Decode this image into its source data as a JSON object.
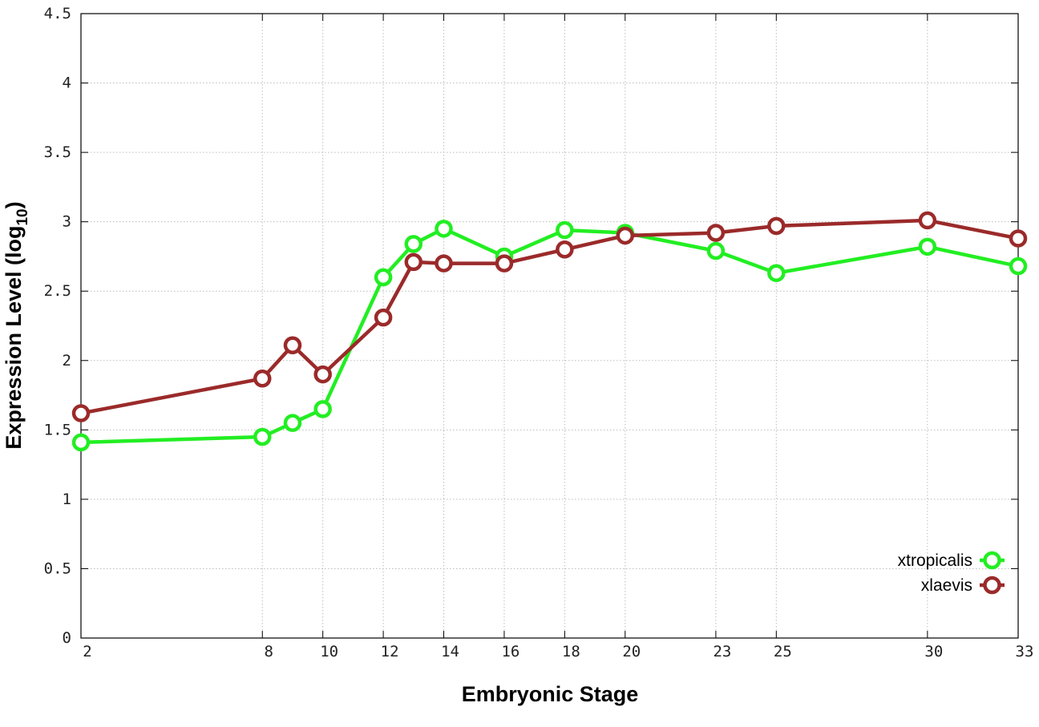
{
  "chart_data": {
    "type": "line",
    "title": "",
    "xlabel": "Embryonic Stage",
    "ylabel": "Expression Level (log",
    "ylabel_subscript": "10",
    "ylabel_close": ")",
    "xlim": [
      2,
      33
    ],
    "ylim": [
      0,
      4.5
    ],
    "x_ticks": [
      2,
      8,
      10,
      12,
      14,
      16,
      18,
      20,
      23,
      25,
      30,
      33
    ],
    "x_tick_labels": [
      "2",
      "8",
      "10",
      "12",
      "14",
      "16",
      "18",
      "20",
      "23",
      "25",
      "30",
      "33"
    ],
    "y_ticks": [
      0,
      0.5,
      1,
      1.5,
      2,
      2.5,
      3,
      3.5,
      4,
      4.5
    ],
    "y_tick_labels": [
      "0",
      "0.5",
      "1",
      "1.5",
      "2",
      "2.5",
      "3",
      "3.5",
      "4",
      "4.5"
    ],
    "grid": true,
    "legend_position": "bottom-right",
    "x": [
      2,
      8,
      9,
      10,
      12,
      13,
      14,
      16,
      18,
      20,
      23,
      25,
      30,
      33
    ],
    "series": [
      {
        "name": "xtropicalis",
        "color": "#22ee22",
        "values": [
          1.41,
          1.45,
          1.55,
          1.65,
          2.6,
          2.84,
          2.95,
          2.75,
          2.94,
          2.92,
          2.79,
          2.63,
          2.82,
          2.68
        ]
      },
      {
        "name": "xlaevis",
        "color": "#9b2a2a",
        "values": [
          1.62,
          1.87,
          2.11,
          1.9,
          2.31,
          2.71,
          2.7,
          2.7,
          2.8,
          2.9,
          2.92,
          2.97,
          3.01,
          2.88
        ]
      }
    ]
  }
}
